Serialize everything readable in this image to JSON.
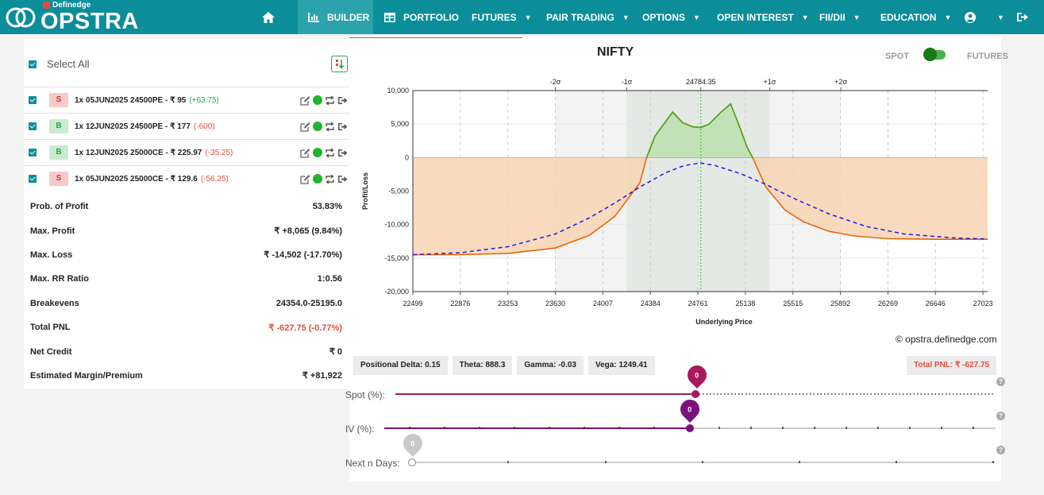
{
  "brand": {
    "sub": "Definedge",
    "name": "OPSTRA"
  },
  "nav": {
    "builder": "BUILDER",
    "portfolio": "PORTFOLIO",
    "futures": "FUTURES",
    "pair_trading": "PAIR TRADING",
    "options": "OPTIONS",
    "open_interest": "OPEN INTEREST",
    "fii_dii": "FII/DII",
    "education": "EDUCATION"
  },
  "left": {
    "select_all": "Select All",
    "legs": [
      {
        "side": "S",
        "text": "1x 05JUN2025 24500PE - ₹ 95",
        "pnl": "(+63.75)",
        "pnl_color": "#27a844"
      },
      {
        "side": "B",
        "text": "1x 12JUN2025 24500PE - ₹ 177",
        "pnl": "(-600)",
        "pnl_color": "#e74c3c"
      },
      {
        "side": "B",
        "text": "1x 12JUN2025 25000CE - ₹ 225.97",
        "pnl": "(-35.25)",
        "pnl_color": "#e74c3c"
      },
      {
        "side": "S",
        "text": "1x 05JUN2025 25000CE - ₹ 129.6",
        "pnl": "(-56.25)",
        "pnl_color": "#e74c3c"
      }
    ],
    "stats": [
      {
        "label": "Prob. of Profit",
        "value": "53.83%"
      },
      {
        "label": "Max. Profit",
        "value": "₹ +8,065 (9.84%)"
      },
      {
        "label": "Max. Loss",
        "value": "₹ -14,502 (-17.70%)"
      },
      {
        "label": "Max. RR Ratio",
        "value": "1:0.56"
      },
      {
        "label": "Breakevens",
        "value": "24354.0-25195.0"
      },
      {
        "label": "Total PNL",
        "value": "₹ -627.75 (-0.77%)"
      },
      {
        "label": "Net Credit",
        "value": "₹ 0"
      },
      {
        "label": "Estimated Margin/Premium",
        "value": "₹ +81,922"
      }
    ]
  },
  "chart": {
    "title": "NIFTY",
    "spot_label": "SPOT",
    "futures_label": "FUTURES",
    "copyright": "© opstra.definedge.com"
  },
  "chart_data": {
    "type": "line",
    "title": "NIFTY",
    "xlabel": "Underlying Price",
    "ylabel": "Profit/Loss",
    "x_ticks": [
      22499,
      22876,
      23253,
      23630,
      24007,
      24384,
      24761,
      25138,
      25515,
      25892,
      26269,
      26646,
      27023
    ],
    "y_ticks": [
      "10,000",
      "5,000",
      "0",
      "-5,000",
      "-10,000",
      "-15,000",
      "-20,000"
    ],
    "xlim": [
      22499,
      27060
    ],
    "ylim": [
      -20000,
      10000
    ],
    "sigma_labels": [
      "-2σ",
      "-1σ",
      "24784.35",
      "+1σ",
      "+2σ"
    ],
    "sigma_values": [
      23630,
      24196,
      24784.35,
      25330,
      25895
    ],
    "series": [
      {
        "color": "#e8660c",
        "x": [
          22499,
          22876,
          23253,
          23630,
          23900,
          24100,
          24300,
          24354,
          24420,
          24560,
          24640,
          24720,
          24784,
          24850,
          24940,
          25020,
          25080,
          25150,
          25195,
          25300,
          25450,
          25600,
          25800,
          26000,
          26269,
          26646,
          27060
        ],
        "y": [
          -14500,
          -14480,
          -14300,
          -13500,
          -11600,
          -8800,
          -3800,
          0,
          3200,
          6800,
          5200,
          4600,
          4500,
          5000,
          6700,
          8000,
          5200,
          1600,
          0,
          -4400,
          -7800,
          -9600,
          -11000,
          -11700,
          -12100,
          -12200,
          -12200
        ]
      },
      {
        "color": "#1a1ae0",
        "dash": true,
        "x": [
          22499,
          22876,
          23253,
          23630,
          23900,
          24100,
          24300,
          24500,
          24650,
          24784,
          24900,
          25100,
          25300,
          25500,
          25800,
          26100,
          26400,
          26800,
          27060
        ],
        "y": [
          -14500,
          -14200,
          -13300,
          -11400,
          -9000,
          -6800,
          -4400,
          -2300,
          -1200,
          -800,
          -1200,
          -2400,
          -4000,
          -5900,
          -8400,
          -10300,
          -11400,
          -12000,
          -12150
        ]
      }
    ]
  },
  "greeks": {
    "delta": "Positional Delta: 0.15",
    "theta": "Theta: 888.3",
    "gamma": "Gamma: -0.03",
    "vega": "Vega: 1249.41",
    "total_pnl": "Total PNL: ₹ -627.75"
  },
  "sliders": {
    "spot": {
      "label": "Spot (%):",
      "value": "0"
    },
    "iv": {
      "label": "IV (%):",
      "value": "0"
    },
    "days": {
      "label": "Next n Days:",
      "value": "0"
    }
  },
  "colors": {
    "nav_bg": "#0b8e9a",
    "loss_red": "#e74c3c",
    "profit_green": "#27a844",
    "spot_slider": "#a8185a",
    "iv_slider": "#7b127b"
  }
}
